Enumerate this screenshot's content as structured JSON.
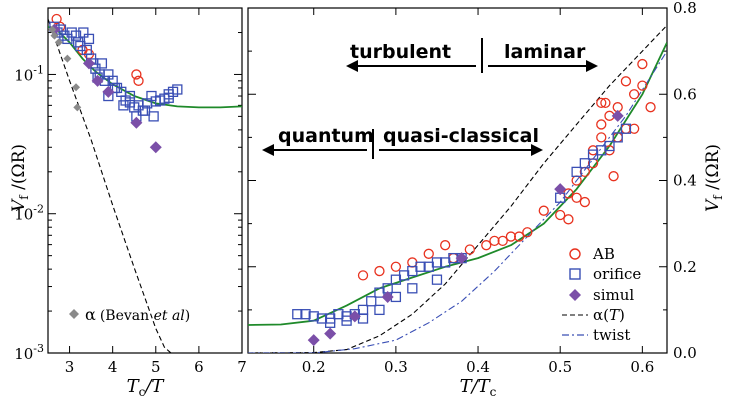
{
  "chart_data": [
    {
      "type": "scatter",
      "panel": "left",
      "xlabel": "Tc/T",
      "xlabel_parts": [
        "T",
        "c",
        "/T"
      ],
      "ylabel": "Vf/(ΩR)",
      "ylabel_parts": [
        "V",
        "f",
        " /(ΩR)"
      ],
      "xlim": [
        2.5,
        7
      ],
      "ylim": [
        0.001,
        0.3
      ],
      "yscale": "log",
      "x_ticks": [
        3,
        4,
        5,
        6,
        7
      ],
      "x_tick_labels": [
        "3",
        "4",
        "5",
        "6",
        "7"
      ],
      "y_ticks": [
        0.001,
        0.01,
        0.1
      ],
      "y_tick_labels": [
        {
          "base": "10",
          "exp": "-3"
        },
        {
          "base": "10",
          "exp": "-2"
        },
        {
          "base": "10",
          "exp": "-1"
        }
      ],
      "series": [
        {
          "name": "AB",
          "marker": "circle",
          "color": "#e8321f",
          "x": [
            2.7,
            2.78,
            3.3,
            3.45,
            4.55,
            4.6
          ],
          "y": [
            0.25,
            0.22,
            0.15,
            0.14,
            0.1,
            0.09
          ]
        },
        {
          "name": "orifice",
          "marker": "square",
          "color": "#3a4fb5",
          "x": [
            2.65,
            2.72,
            2.8,
            2.88,
            2.95,
            3.05,
            3.15,
            3.25,
            3.32,
            3.45,
            3.5,
            3.6,
            3.7,
            3.75,
            3.82,
            3.9,
            4.0,
            4.1,
            4.2,
            4.3,
            4.4,
            4.5,
            4.6,
            4.7,
            4.8,
            4.9,
            5.0,
            5.1,
            5.2,
            5.3,
            5.4,
            5.5,
            5.3,
            4.95,
            4.75,
            4.55,
            4.4,
            4.25,
            4.05,
            3.9,
            3.65,
            3.55,
            3.4,
            3.2
          ],
          "y": [
            0.22,
            0.2,
            0.21,
            0.19,
            0.18,
            0.2,
            0.19,
            0.16,
            0.2,
            0.18,
            0.13,
            0.11,
            0.1,
            0.12,
            0.09,
            0.1,
            0.09,
            0.08,
            0.075,
            0.065,
            0.063,
            0.058,
            0.06,
            0.055,
            0.062,
            0.07,
            0.064,
            0.065,
            0.067,
            0.072,
            0.075,
            0.078,
            0.068,
            0.05,
            0.055,
            0.05,
            0.07,
            0.06,
            0.08,
            0.07,
            0.095,
            0.12,
            0.15,
            0.17
          ]
        },
        {
          "name": "simul",
          "marker": "diamond",
          "color": "#7b4fa8",
          "x": [
            2.65,
            3.45,
            3.65,
            3.9,
            4.55,
            5.0
          ],
          "y": [
            0.21,
            0.12,
            0.09,
            0.075,
            0.045,
            0.03
          ]
        },
        {
          "name": "α (Bevan et al)",
          "marker": "diamond-small",
          "color": "#8a8a8a",
          "x": [
            2.6,
            2.65,
            2.75,
            2.95,
            3.15,
            3.18
          ],
          "y": [
            0.21,
            0.19,
            0.17,
            0.13,
            0.081,
            0.058
          ]
        }
      ],
      "lines": [
        {
          "name": "model",
          "style": "solid",
          "color": "#1f8a2a",
          "x": [
            2.5,
            2.7,
            3.0,
            3.3,
            3.6,
            4.0,
            4.5,
            5.0,
            5.5,
            6.0,
            6.5,
            7.0
          ],
          "y": [
            0.22,
            0.21,
            0.17,
            0.13,
            0.105,
            0.085,
            0.07,
            0.062,
            0.059,
            0.058,
            0.058,
            0.059
          ]
        },
        {
          "name": "α(T)",
          "style": "dashed",
          "color": "#000000",
          "x": [
            2.5,
            3.0,
            3.5,
            4.0,
            4.5,
            5.0,
            5.2,
            5.35
          ],
          "y": [
            0.25,
            0.09,
            0.034,
            0.0115,
            0.0041,
            0.0015,
            0.0011,
            0.001
          ]
        }
      ],
      "annotation": {
        "symbol": "α",
        "open": "(Bevan ",
        "emph": "et al",
        "close": ")"
      }
    },
    {
      "type": "scatter",
      "panel": "right",
      "xlabel": "T/Tc",
      "xlabel_parts": [
        "T",
        "/T",
        "c"
      ],
      "ylabel": "Vf/(ΩR)",
      "ylabel_parts": [
        "V",
        "f",
        " /(ΩR)"
      ],
      "xlim": [
        0.12,
        0.63
      ],
      "ylim": [
        0.0,
        0.8
      ],
      "x_ticks": [
        0.2,
        0.3,
        0.4,
        0.5,
        0.6
      ],
      "x_tick_labels": [
        "0.2",
        "0.3",
        "0.4",
        "0.5",
        "0.6"
      ],
      "y_ticks": [
        0.0,
        0.2,
        0.4,
        0.6,
        0.8
      ],
      "y_tick_labels": [
        "0.0",
        "0.2",
        "0.4",
        "0.6",
        "0.8"
      ],
      "series": [
        {
          "name": "AB",
          "marker": "circle",
          "color": "#e8321f",
          "x": [
            0.26,
            0.28,
            0.3,
            0.32,
            0.34,
            0.36,
            0.37,
            0.39,
            0.41,
            0.42,
            0.43,
            0.44,
            0.45,
            0.46,
            0.48,
            0.5,
            0.51,
            0.51,
            0.52,
            0.52,
            0.53,
            0.54,
            0.54,
            0.55,
            0.55,
            0.55,
            0.56,
            0.56,
            0.57,
            0.57,
            0.58,
            0.58,
            0.59,
            0.59,
            0.6,
            0.6,
            0.61,
            0.53,
            0.555,
            0.565
          ],
          "y": [
            0.18,
            0.19,
            0.2,
            0.21,
            0.23,
            0.25,
            0.22,
            0.24,
            0.25,
            0.26,
            0.26,
            0.27,
            0.27,
            0.28,
            0.33,
            0.32,
            0.31,
            0.37,
            0.4,
            0.36,
            0.42,
            0.47,
            0.44,
            0.5,
            0.53,
            0.58,
            0.47,
            0.55,
            0.5,
            0.57,
            0.52,
            0.63,
            0.6,
            0.52,
            0.67,
            0.62,
            0.57,
            0.35,
            0.58,
            0.41
          ]
        },
        {
          "name": "orifice",
          "marker": "square",
          "color": "#3a4fb5",
          "x": [
            0.18,
            0.19,
            0.2,
            0.21,
            0.22,
            0.23,
            0.24,
            0.25,
            0.26,
            0.27,
            0.28,
            0.29,
            0.3,
            0.31,
            0.32,
            0.33,
            0.34,
            0.35,
            0.36,
            0.37,
            0.38,
            0.22,
            0.24,
            0.26,
            0.28,
            0.3,
            0.32,
            0.35,
            0.5,
            0.52,
            0.54,
            0.56,
            0.58,
            0.53,
            0.55,
            0.57
          ],
          "y": [
            0.09,
            0.09,
            0.085,
            0.08,
            0.08,
            0.09,
            0.085,
            0.09,
            0.1,
            0.12,
            0.14,
            0.15,
            0.17,
            0.18,
            0.19,
            0.2,
            0.2,
            0.21,
            0.21,
            0.22,
            0.22,
            0.07,
            0.075,
            0.08,
            0.1,
            0.13,
            0.15,
            0.17,
            0.36,
            0.42,
            0.46,
            0.48,
            0.52,
            0.44,
            0.47,
            0.5
          ]
        },
        {
          "name": "simul",
          "marker": "diamond",
          "color": "#7b4fa8",
          "x": [
            0.2,
            0.22,
            0.25,
            0.29,
            0.38,
            0.5,
            0.57
          ],
          "y": [
            0.03,
            0.045,
            0.085,
            0.13,
            0.22,
            0.38,
            0.55
          ]
        }
      ],
      "lines": [
        {
          "name": "model",
          "style": "solid",
          "color": "#1f8a2a",
          "x": [
            0.12,
            0.16,
            0.2,
            0.24,
            0.28,
            0.32,
            0.36,
            0.4,
            0.44,
            0.48,
            0.52,
            0.56,
            0.6,
            0.63
          ],
          "y": [
            0.065,
            0.066,
            0.075,
            0.11,
            0.15,
            0.175,
            0.2,
            0.22,
            0.25,
            0.3,
            0.38,
            0.48,
            0.6,
            0.72
          ]
        },
        {
          "name": "α(T)",
          "style": "dashed",
          "color": "#000000",
          "x": [
            0.12,
            0.2,
            0.24,
            0.28,
            0.32,
            0.36,
            0.4,
            0.44,
            0.48,
            0.52,
            0.56,
            0.6,
            0.63
          ],
          "y": [
            0.0,
            0.001,
            0.008,
            0.04,
            0.09,
            0.16,
            0.25,
            0.34,
            0.44,
            0.53,
            0.62,
            0.7,
            0.76
          ]
        },
        {
          "name": "twist",
          "style": "dashdot",
          "color": "#3a4fb5",
          "x": [
            0.12,
            0.2,
            0.25,
            0.3,
            0.34,
            0.38,
            0.42,
            0.46,
            0.5,
            0.54,
            0.58,
            0.63
          ],
          "y": [
            0.0,
            0.0,
            0.01,
            0.03,
            0.07,
            0.12,
            0.19,
            0.27,
            0.35,
            0.45,
            0.55,
            0.7
          ]
        }
      ],
      "annotations": [
        {
          "text": "turbulent",
          "side": "left"
        },
        {
          "text": "laminar",
          "side": "right"
        },
        {
          "text": "quantum",
          "side": "left"
        },
        {
          "text": "quasi-classical",
          "side": "right"
        }
      ],
      "legend": {
        "position": "bottom-right",
        "entries": [
          {
            "label": "AB",
            "marker": "circle",
            "color": "#e8321f"
          },
          {
            "label": "orifice",
            "marker": "square",
            "color": "#3a4fb5"
          },
          {
            "label": "simul",
            "marker": "diamond",
            "color": "#7b4fa8"
          },
          {
            "label": "α(",
            "label_italic": "T",
            "label_tail": ")",
            "marker": "dashed",
            "color": "#000000"
          },
          {
            "label": "twist",
            "marker": "dashdot",
            "color": "#3a4fb5"
          }
        ]
      }
    }
  ]
}
